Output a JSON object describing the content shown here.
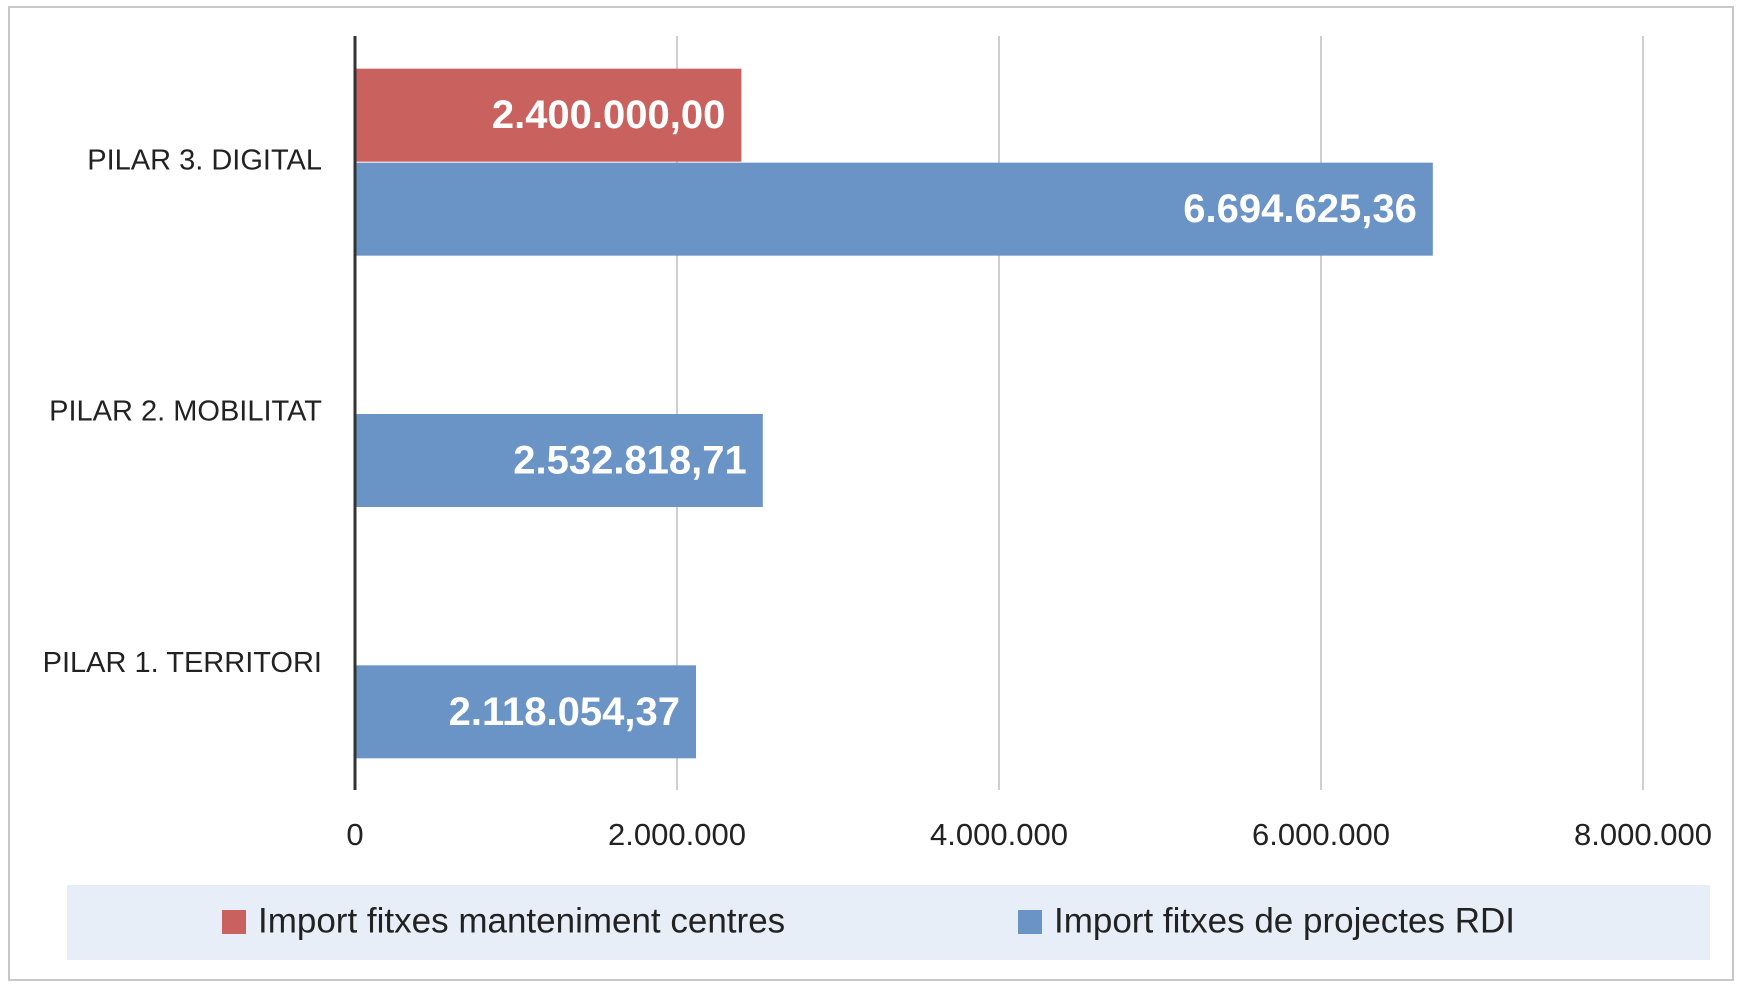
{
  "chart_data": {
    "type": "bar",
    "orientation": "horizontal",
    "categories": [
      "PILAR 1. TERRITORI",
      "PILAR 2. MOBILITAT",
      "PILAR 3. DIGITAL"
    ],
    "series": [
      {
        "name": "Import fitxes manteniment centres",
        "color": "#c9625e",
        "values": [
          null,
          null,
          2400000
        ],
        "value_labels": [
          null,
          null,
          "2.400.000,00"
        ]
      },
      {
        "name": "Import fitxes de projectes RDI",
        "color": "#6a93c6",
        "values": [
          2118054.37,
          2532818.71,
          6694625.36
        ],
        "value_labels": [
          "2.118.054,37",
          "2.532.818,71",
          "6.694.625,36"
        ]
      }
    ],
    "xlim": [
      0,
      8000000
    ],
    "xticks": [
      0,
      {
        "value": 2000000,
        "label": "2.000.000"
      },
      {
        "value": 4000000,
        "label": "4.000.000"
      },
      {
        "value": 6000000,
        "label": "6.000.000"
      },
      {
        "value": 8000000,
        "label": "8.000.000"
      }
    ],
    "grid": true,
    "legend": "bottom"
  }
}
